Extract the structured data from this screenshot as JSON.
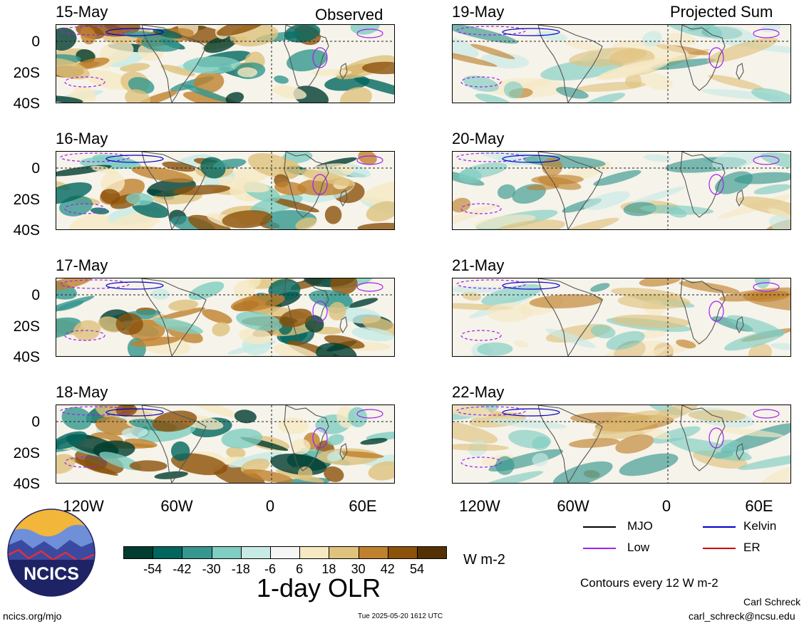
{
  "panels_left": {
    "header": "Observed",
    "dates": [
      "15-May",
      "16-May",
      "17-May",
      "18-May"
    ]
  },
  "panels_right": {
    "header": "Projected Sum",
    "dates": [
      "19-May",
      "20-May",
      "21-May",
      "22-May"
    ]
  },
  "y_ticks": [
    "0",
    "20S",
    "40S"
  ],
  "x_ticks": [
    "120W",
    "60W",
    "0",
    "60E"
  ],
  "colorbar": {
    "title": "1-day OLR",
    "units": "W m-2",
    "labels": [
      "-54",
      "-42",
      "-30",
      "-18",
      "-6",
      "6",
      "18",
      "30",
      "42",
      "54"
    ],
    "colors": [
      "#003c30",
      "#01665e",
      "#35978f",
      "#80cdc1",
      "#c7eae5",
      "#f5f5f5",
      "#f6e8c3",
      "#dfc27d",
      "#bf812d",
      "#8c510a",
      "#543005"
    ]
  },
  "legend": {
    "items": [
      {
        "label": "MJO",
        "color": "#000000"
      },
      {
        "label": "Kelvin",
        "color": "#0000cc"
      },
      {
        "label": "Low",
        "color": "#a020f0"
      },
      {
        "label": "ER",
        "color": "#cc0000"
      }
    ],
    "contours_note": "Contours every 12 W m-2"
  },
  "logo": {
    "text": "NCICS"
  },
  "footer": {
    "url": "ncics.org/mjo",
    "timestamp": "Tue 2025-05-20 1612 UTC",
    "author": "Carl Schreck",
    "email": "carl_schreck@ncsu.edu"
  }
}
